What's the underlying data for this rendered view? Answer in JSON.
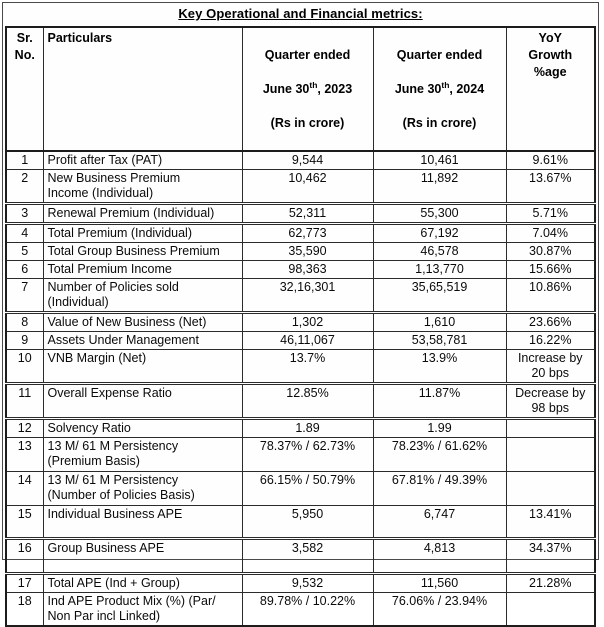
{
  "page": {
    "title": "Key Operational and Financial metrics:"
  },
  "table": {
    "headers": {
      "sr": "Sr.\nNo.",
      "particulars": "Particulars",
      "q2023": {
        "line1": "Quarter ended",
        "date": "June 30",
        "sup": "th",
        "year": ", 2023",
        "line2": "(Rs in crore)"
      },
      "q2024": {
        "line1": "Quarter ended",
        "date": "June 30",
        "sup": "th",
        "year": ", 2024",
        "line2": "(Rs in crore)"
      },
      "yoy": "YoY\nGrowth\n%age"
    },
    "rows": [
      {
        "sr": "1",
        "particulars": "Profit after Tax (PAT)",
        "q2023": "9,544",
        "q2024": "10,461",
        "yoy": "9.61%"
      },
      {
        "sr": "2",
        "particulars": "New Business Premium\nIncome (Individual)",
        "q2023": "10,462",
        "q2024": "11,892",
        "yoy": "13.67%"
      },
      {
        "sr": "3",
        "particulars": "Renewal Premium (Individual)",
        "q2023": "52,311",
        "q2024": "55,300",
        "yoy": "5.71%"
      },
      {
        "sr": "4",
        "particulars": "Total Premium (Individual)",
        "q2023": "62,773",
        "q2024": "67,192",
        "yoy": "7.04%"
      },
      {
        "sr": "5",
        "particulars": "Total Group Business Premium",
        "q2023": "35,590",
        "q2024": "46,578",
        "yoy": "30.87%"
      },
      {
        "sr": "6",
        "particulars": "Total Premium Income",
        "q2023": "98,363",
        "q2024": "1,13,770",
        "yoy": "15.66%"
      },
      {
        "sr": "7",
        "particulars": "Number of Policies sold\n(Individual)",
        "q2023": "32,16,301",
        "q2024": "35,65,519",
        "yoy": "10.86%"
      },
      {
        "sr": "8",
        "particulars": "Value of New Business (Net)",
        "q2023": "1,302",
        "q2024": "1,610",
        "yoy": "23.66%"
      },
      {
        "sr": "9",
        "particulars": "Assets Under Management",
        "q2023": "46,11,067",
        "q2024": "53,58,781",
        "yoy": "16.22%"
      },
      {
        "sr": "10",
        "particulars": "VNB Margin (Net)",
        "q2023": "13.7%",
        "q2024": "13.9%",
        "yoy": "Increase by\n20 bps"
      },
      {
        "sr": "11",
        "particulars": "Overall Expense Ratio",
        "q2023": "12.85%",
        "q2024": "11.87%",
        "yoy": "Decrease by\n98 bps"
      },
      {
        "sr": "12",
        "particulars": "Solvency Ratio",
        "q2023": "1.89",
        "q2024": "1.99",
        "yoy": ""
      },
      {
        "sr": "13",
        "particulars": "13 M/ 61 M Persistency\n(Premium Basis)",
        "q2023": "78.37% / 62.73%",
        "q2024": "78.23% / 61.62%",
        "yoy": ""
      },
      {
        "sr": "14",
        "particulars": "13 M/ 61 M Persistency\n(Number of Policies Basis)",
        "q2023": "66.15% / 50.79%",
        "q2024": "67.81% / 49.39%",
        "yoy": ""
      },
      {
        "sr": "15",
        "particulars": "Individual Business APE",
        "q2023": "5,950",
        "q2024": "6,747",
        "yoy": "13.41%"
      },
      {
        "sr": "16",
        "particulars": "Group Business APE",
        "q2023": "3,582",
        "q2024": "4,813",
        "yoy": "34.37%"
      },
      {
        "sr": "17",
        "particulars": "Total APE (Ind + Group)",
        "q2023": "9,532",
        "q2024": "11,560",
        "yoy": "21.28%"
      },
      {
        "sr": "18",
        "particulars": "Ind APE Product Mix (%) (Par/\nNon Par incl Linked)",
        "q2023": "89.78% / 10.22%",
        "q2024": "76.06% / 23.94%",
        "yoy": ""
      }
    ]
  }
}
